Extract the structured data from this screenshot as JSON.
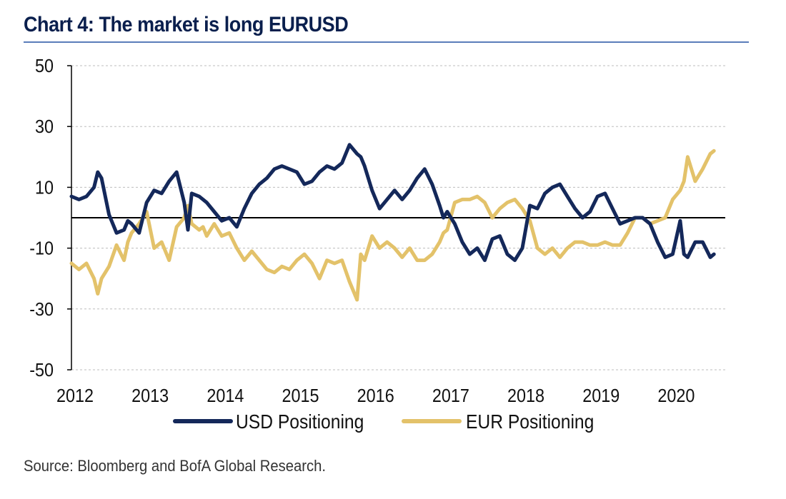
{
  "title": "Chart 4:  The market is long EURUSD",
  "source": "Source: Bloomberg and BofA Global Research.",
  "colors": {
    "usd": "#14285a",
    "eur": "#e3c26a",
    "grid": "#bdbdbd",
    "axis": "#000000",
    "title": "#0a1f4d"
  },
  "chart_data": {
    "type": "line",
    "title": "The market is long EURUSD",
    "xlabel": "",
    "ylabel": "",
    "xlim": [
      2012,
      2020.7
    ],
    "ylim": [
      -50,
      50
    ],
    "yticks": [
      50,
      30,
      10,
      -10,
      -30,
      -50
    ],
    "xticks": [
      2012,
      2013,
      2014,
      2015,
      2016,
      2017,
      2018,
      2019,
      2020
    ],
    "zero_line": 0,
    "grid": "horizontal dashed",
    "legend": "bottom",
    "series": [
      {
        "name": "USD Positioning",
        "x": [
          2012.0,
          2012.1,
          2012.2,
          2012.3,
          2012.35,
          2012.4,
          2012.5,
          2012.6,
          2012.7,
          2012.75,
          2012.8,
          2012.9,
          2013.0,
          2013.1,
          2013.2,
          2013.3,
          2013.4,
          2013.5,
          2013.55,
          2013.6,
          2013.7,
          2013.75,
          2013.8,
          2013.9,
          2014.0,
          2014.1,
          2014.2,
          2014.3,
          2014.4,
          2014.5,
          2014.6,
          2014.7,
          2014.8,
          2014.9,
          2015.0,
          2015.1,
          2015.2,
          2015.3,
          2015.4,
          2015.5,
          2015.6,
          2015.7,
          2015.8,
          2015.85,
          2015.9,
          2016.0,
          2016.1,
          2016.2,
          2016.3,
          2016.4,
          2016.5,
          2016.6,
          2016.7,
          2016.8,
          2016.9,
          2016.95,
          2017.0,
          2017.1,
          2017.2,
          2017.3,
          2017.4,
          2017.5,
          2017.6,
          2017.7,
          2017.8,
          2017.9,
          2018.0,
          2018.1,
          2018.2,
          2018.3,
          2018.4,
          2018.5,
          2018.6,
          2018.7,
          2018.8,
          2018.9,
          2019.0,
          2019.1,
          2019.2,
          2019.3,
          2019.4,
          2019.5,
          2019.6,
          2019.7,
          2019.8,
          2019.9,
          2020.0,
          2020.1,
          2020.15,
          2020.2,
          2020.3,
          2020.4,
          2020.5,
          2020.55
        ],
        "values": [
          7,
          6,
          7,
          10,
          15,
          13,
          1,
          -5,
          -4,
          -1,
          -2,
          -5,
          5,
          9,
          8,
          12,
          15,
          5,
          -4,
          8,
          7,
          6,
          5,
          2,
          -1,
          0,
          -3,
          3,
          8,
          11,
          13,
          16,
          17,
          16,
          15,
          11,
          12,
          15,
          17,
          16,
          18,
          24,
          21,
          20,
          17,
          9,
          3,
          6,
          9,
          6,
          9,
          13,
          16,
          11,
          4,
          0,
          2,
          -2,
          -8,
          -12,
          -10,
          -14,
          -7,
          -6,
          -12,
          -14,
          -10,
          4,
          3,
          8,
          10,
          11,
          7,
          3,
          0,
          2,
          7,
          8,
          3,
          -2,
          -1,
          0,
          0,
          -2,
          -8,
          -13,
          -12,
          -1,
          -12,
          -13,
          -8,
          -8,
          -13,
          -12
        ]
      },
      {
        "name": "EUR Positioning",
        "x": [
          2012.0,
          2012.1,
          2012.2,
          2012.3,
          2012.35,
          2012.4,
          2012.5,
          2012.6,
          2012.7,
          2012.75,
          2012.8,
          2012.9,
          2013.0,
          2013.1,
          2013.2,
          2013.3,
          2013.4,
          2013.5,
          2013.55,
          2013.6,
          2013.7,
          2013.75,
          2013.8,
          2013.9,
          2014.0,
          2014.1,
          2014.2,
          2014.3,
          2014.4,
          2014.5,
          2014.6,
          2014.7,
          2014.8,
          2014.9,
          2015.0,
          2015.1,
          2015.2,
          2015.3,
          2015.4,
          2015.5,
          2015.6,
          2015.7,
          2015.8,
          2015.85,
          2015.9,
          2016.0,
          2016.1,
          2016.2,
          2016.3,
          2016.4,
          2016.5,
          2016.6,
          2016.7,
          2016.8,
          2016.9,
          2016.95,
          2017.0,
          2017.1,
          2017.2,
          2017.3,
          2017.4,
          2017.5,
          2017.6,
          2017.7,
          2017.8,
          2017.9,
          2018.0,
          2018.1,
          2018.2,
          2018.3,
          2018.4,
          2018.5,
          2018.6,
          2018.7,
          2018.8,
          2018.9,
          2019.0,
          2019.1,
          2019.2,
          2019.3,
          2019.4,
          2019.5,
          2019.6,
          2019.7,
          2019.8,
          2019.9,
          2020.0,
          2020.1,
          2020.15,
          2020.2,
          2020.3,
          2020.4,
          2020.5,
          2020.55
        ],
        "values": [
          -15,
          -17,
          -15,
          -20,
          -25,
          -20,
          -16,
          -9,
          -14,
          -8,
          -5,
          -2,
          2,
          -10,
          -8,
          -14,
          -3,
          0,
          4,
          -2,
          -4,
          -3,
          -6,
          -2,
          -6,
          -5,
          -10,
          -14,
          -11,
          -14,
          -17,
          -18,
          -16,
          -17,
          -14,
          -12,
          -15,
          -20,
          -14,
          -15,
          -14,
          -21,
          -27,
          -12,
          -14,
          -6,
          -10,
          -8,
          -10,
          -13,
          -10,
          -14,
          -14,
          -12,
          -8,
          -5,
          -4,
          5,
          6,
          6,
          7,
          5,
          0,
          3,
          5,
          6,
          3,
          -1,
          -10,
          -12,
          -10,
          -13,
          -10,
          -8,
          -8,
          -9,
          -9,
          -8,
          -9,
          -9,
          -5,
          0,
          0,
          -2,
          -1,
          0,
          6,
          9,
          12,
          20,
          12,
          16,
          21,
          22
        ]
      }
    ]
  }
}
